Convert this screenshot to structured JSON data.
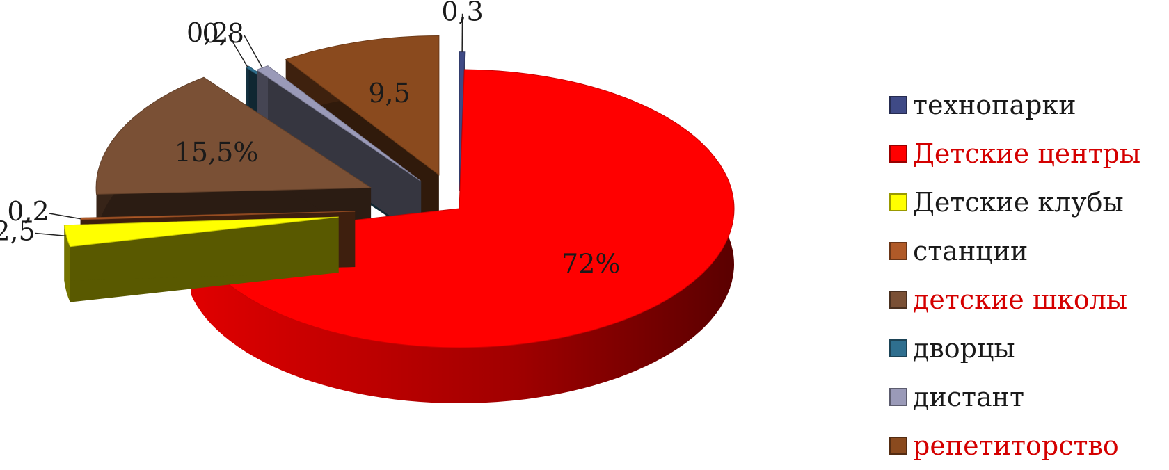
{
  "chart_data": {
    "type": "pie",
    "style": "3d-exploded",
    "legend_position": "right",
    "slices": [
      {
        "name": "технопарки",
        "value": 0.3,
        "label": "0,3",
        "color": "#3f4a86",
        "legend_color": "#1a1a1a"
      },
      {
        "name": "Детские центры",
        "value": 72,
        "label": "72%",
        "color": "#ff0000",
        "legend_color": "#d40000"
      },
      {
        "name": "Детские клубы",
        "value": 2.5,
        "label": "2,5",
        "color": "#ffff00",
        "legend_color": "#1a1a1a"
      },
      {
        "name": "станции",
        "value": 0.2,
        "label": "0,2",
        "color": "#b05a28",
        "legend_color": "#1a1a1a"
      },
      {
        "name": "детские школы",
        "value": 15.5,
        "label": "15,5%",
        "color": "#7a5035",
        "legend_color": "#d40000"
      },
      {
        "name": "дворцы",
        "value": 0.2,
        "label": "0,2",
        "color": "#2f6f8f",
        "legend_color": "#1a1a1a"
      },
      {
        "name": "дистант",
        "value": 0.8,
        "label": "0,8",
        "color": "#9a9ab8",
        "legend_color": "#1a1a1a"
      },
      {
        "name": "репетиторство",
        "value": 9.5,
        "label": "9,5",
        "color": "#8a4a1e",
        "legend_color": "#d40000"
      }
    ]
  }
}
